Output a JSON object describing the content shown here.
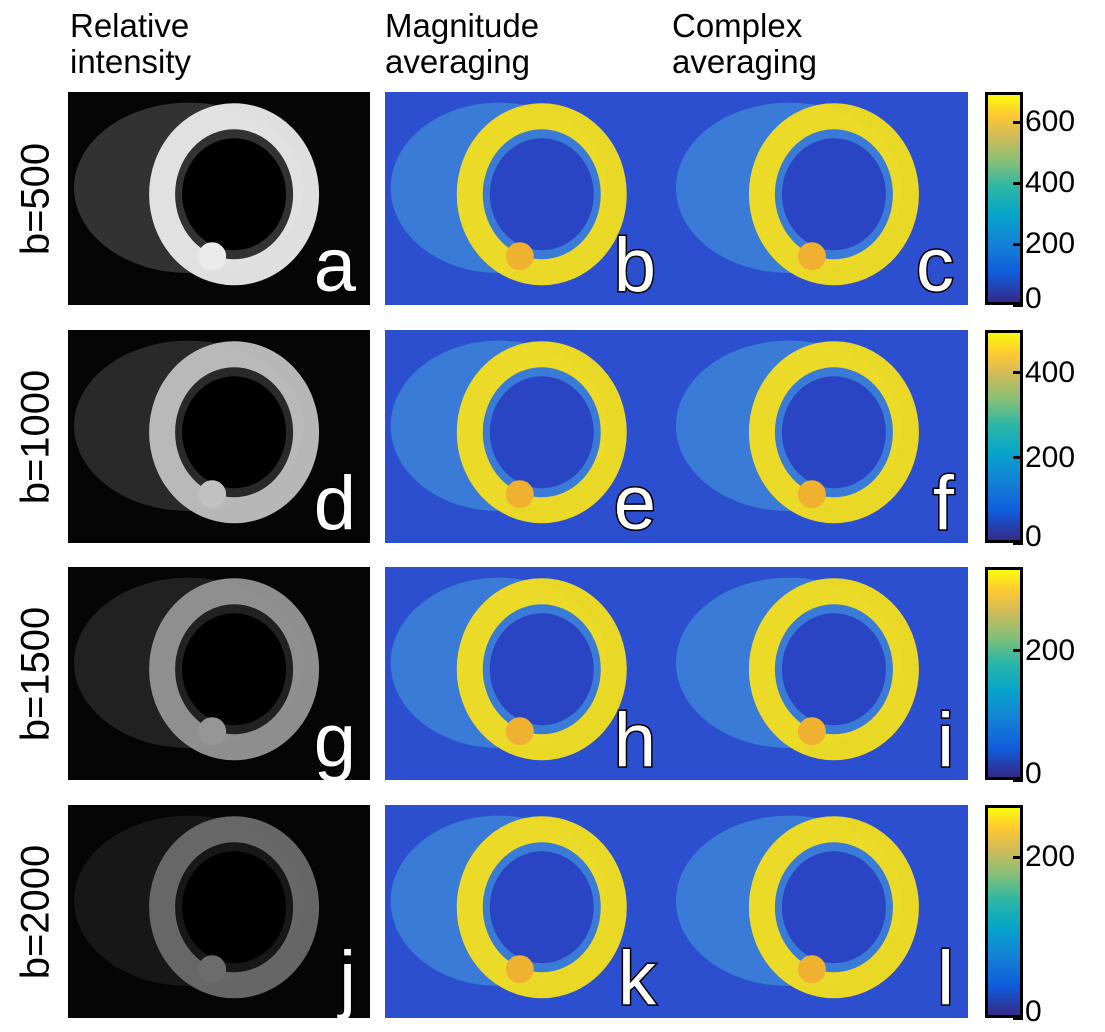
{
  "column_headers": [
    "Relative\nintensity",
    "Magnitude\naveraging",
    "Complex\naveraging"
  ],
  "rows": [
    {
      "label": "b=500",
      "panels": [
        "a",
        "b",
        "c"
      ],
      "colorbar": {
        "lim": [
          0,
          700
        ],
        "ticks": [
          0,
          200,
          400,
          600
        ]
      }
    },
    {
      "label": "b=1000",
      "panels": [
        "d",
        "e",
        "f"
      ],
      "colorbar": {
        "lim": [
          0,
          500
        ],
        "ticks": [
          0,
          200,
          400
        ]
      }
    },
    {
      "label": "b=1500",
      "panels": [
        "g",
        "h",
        "i"
      ],
      "colorbar": {
        "lim": [
          0,
          330
        ],
        "ticks": [
          0,
          200
        ]
      }
    },
    {
      "label": "b=2000",
      "panels": [
        "j",
        "k",
        "l"
      ],
      "colorbar": {
        "lim": [
          0,
          265
        ],
        "ticks": [
          0,
          200
        ]
      }
    }
  ]
}
